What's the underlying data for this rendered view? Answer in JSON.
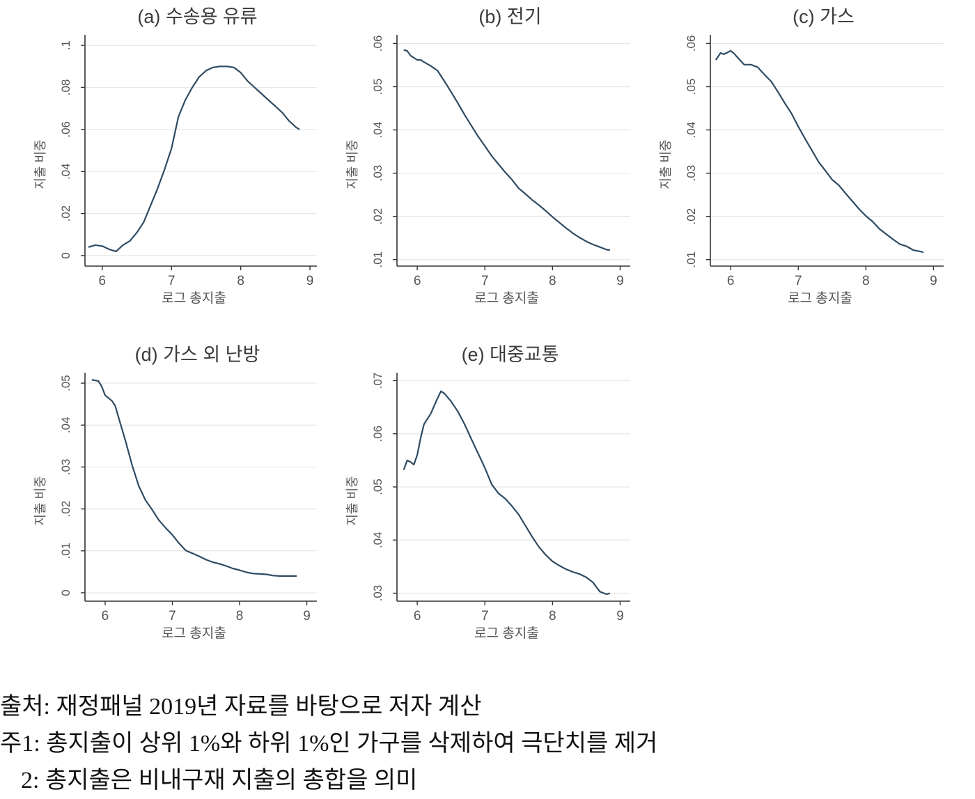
{
  "chart_data": [
    {
      "type": "line",
      "title": "(a) 수송용 유류",
      "xlabel": "로그 총지출",
      "ylabel": "지출 비중",
      "xlim": [
        5.75,
        9.1
      ],
      "ylim": [
        -0.005,
        0.105
      ],
      "xticks": [
        6,
        7,
        8,
        9
      ],
      "xtick_labels": [
        "6",
        "7",
        "8",
        "9"
      ],
      "yticks": [
        0,
        0.02,
        0.04,
        0.06,
        0.08,
        0.1
      ],
      "ytick_labels": [
        "0",
        ".02",
        ".04",
        ".06",
        ".08",
        ".1"
      ],
      "grid": true,
      "series": [
        {
          "color": "#2f4b62",
          "x": [
            5.8,
            5.9,
            6.0,
            6.1,
            6.2,
            6.3,
            6.4,
            6.5,
            6.6,
            6.7,
            6.8,
            6.9,
            7.0,
            7.1,
            7.2,
            7.3,
            7.4,
            7.5,
            7.6,
            7.7,
            7.8,
            7.9,
            8.0,
            8.1,
            8.2,
            8.3,
            8.4,
            8.5,
            8.6,
            8.7,
            8.8,
            8.85
          ],
          "y": [
            0.004,
            0.005,
            0.0045,
            0.003,
            0.002,
            0.005,
            0.007,
            0.011,
            0.016,
            0.024,
            0.032,
            0.041,
            0.051,
            0.066,
            0.074,
            0.08,
            0.085,
            0.088,
            0.0895,
            0.09,
            0.09,
            0.0895,
            0.087,
            0.083,
            0.08,
            0.077,
            0.074,
            0.071,
            0.068,
            0.064,
            0.061,
            0.06
          ]
        }
      ]
    },
    {
      "type": "line",
      "title": "(b) 전기",
      "xlabel": "로그 총지출",
      "ylabel": "지출 비중",
      "xlim": [
        5.7,
        9.15
      ],
      "ylim": [
        0.0085,
        0.062
      ],
      "xticks": [
        6,
        7,
        8,
        9
      ],
      "xtick_labels": [
        "6",
        "7",
        "8",
        "9"
      ],
      "yticks": [
        0.01,
        0.02,
        0.03,
        0.04,
        0.05,
        0.06
      ],
      "ytick_labels": [
        ".01",
        ".02",
        ".03",
        ".04",
        ".05",
        ".06"
      ],
      "grid": true,
      "series": [
        {
          "color": "#2f4b62",
          "x": [
            5.8,
            5.85,
            5.9,
            6.0,
            6.05,
            6.1,
            6.2,
            6.3,
            6.4,
            6.5,
            6.6,
            6.7,
            6.8,
            6.9,
            7.0,
            7.1,
            7.2,
            7.3,
            7.4,
            7.5,
            7.6,
            7.7,
            7.8,
            7.9,
            8.0,
            8.1,
            8.2,
            8.3,
            8.4,
            8.5,
            8.6,
            8.7,
            8.8,
            8.85
          ],
          "y": [
            0.0585,
            0.0583,
            0.0572,
            0.0562,
            0.0562,
            0.0557,
            0.0548,
            0.0537,
            0.0513,
            0.0488,
            0.0462,
            0.0435,
            0.041,
            0.0385,
            0.0363,
            0.034,
            0.0321,
            0.0302,
            0.0285,
            0.0265,
            0.0252,
            0.0238,
            0.0226,
            0.0213,
            0.0199,
            0.0186,
            0.0173,
            0.0161,
            0.0151,
            0.0142,
            0.0135,
            0.0129,
            0.0123,
            0.0122
          ]
        }
      ]
    },
    {
      "type": "line",
      "title": "(c) 가스",
      "xlabel": "로그 총지출",
      "ylabel": "지출 비중",
      "xlim": [
        5.7,
        9.15
      ],
      "ylim": [
        0.0085,
        0.062
      ],
      "xticks": [
        6,
        7,
        8,
        9
      ],
      "xtick_labels": [
        "6",
        "7",
        "8",
        "9"
      ],
      "yticks": [
        0.01,
        0.02,
        0.03,
        0.04,
        0.05,
        0.06
      ],
      "ytick_labels": [
        ".01",
        ".02",
        ".03",
        ".04",
        ".05",
        ".06"
      ],
      "grid": true,
      "series": [
        {
          "color": "#2f4b62",
          "x": [
            5.78,
            5.85,
            5.9,
            6.0,
            6.05,
            6.1,
            6.2,
            6.3,
            6.4,
            6.5,
            6.6,
            6.7,
            6.8,
            6.9,
            7.0,
            7.1,
            7.2,
            7.3,
            7.4,
            7.5,
            7.6,
            7.7,
            7.8,
            7.9,
            8.0,
            8.1,
            8.2,
            8.3,
            8.4,
            8.5,
            8.6,
            8.7,
            8.8,
            8.85
          ],
          "y": [
            0.0562,
            0.0578,
            0.0575,
            0.0583,
            0.0577,
            0.0568,
            0.0551,
            0.0551,
            0.0545,
            0.0528,
            0.0512,
            0.0488,
            0.0462,
            0.0438,
            0.0408,
            0.038,
            0.0353,
            0.0326,
            0.0306,
            0.0285,
            0.0272,
            0.0253,
            0.0235,
            0.0217,
            0.0201,
            0.0188,
            0.0171,
            0.0159,
            0.0147,
            0.0136,
            0.0131,
            0.0122,
            0.0119,
            0.0117
          ]
        }
      ]
    },
    {
      "type": "line",
      "title": "(d) 가스 외 난방",
      "xlabel": "로그 총지출",
      "ylabel": "지출 비중",
      "xlim": [
        5.7,
        9.15
      ],
      "ylim": [
        -0.002,
        0.0525
      ],
      "xticks": [
        6,
        7,
        8,
        9
      ],
      "xtick_labels": [
        "6",
        "7",
        "8",
        "9"
      ],
      "yticks": [
        0,
        0.01,
        0.02,
        0.03,
        0.04,
        0.05
      ],
      "ytick_labels": [
        "0",
        ".01",
        ".02",
        ".03",
        ".04",
        ".05"
      ],
      "grid": true,
      "series": [
        {
          "color": "#2f4b62",
          "x": [
            5.8,
            5.9,
            5.95,
            6.0,
            6.1,
            6.15,
            6.2,
            6.3,
            6.4,
            6.5,
            6.6,
            6.7,
            6.8,
            6.9,
            7.0,
            7.1,
            7.2,
            7.3,
            7.4,
            7.5,
            7.6,
            7.7,
            7.8,
            7.9,
            8.0,
            8.1,
            8.2,
            8.3,
            8.4,
            8.5,
            8.6,
            8.7,
            8.8,
            8.85
          ],
          "y": [
            0.0508,
            0.0505,
            0.0492,
            0.0471,
            0.0458,
            0.0446,
            0.0418,
            0.0364,
            0.0305,
            0.0255,
            0.0221,
            0.0198,
            0.0173,
            0.0155,
            0.0138,
            0.0118,
            0.0101,
            0.0094,
            0.0087,
            0.0079,
            0.0073,
            0.0069,
            0.0064,
            0.0058,
            0.0054,
            0.0049,
            0.0046,
            0.0045,
            0.0044,
            0.0041,
            0.004,
            0.004,
            0.004,
            0.004
          ]
        }
      ]
    },
    {
      "type": "line",
      "title": "(e) 대중교통",
      "xlabel": "로그 총지출",
      "ylabel": "지출 비중",
      "xlim": [
        5.7,
        9.15
      ],
      "ylim": [
        0.0285,
        0.0715
      ],
      "xticks": [
        6,
        7,
        8,
        9
      ],
      "xtick_labels": [
        "6",
        "7",
        "8",
        "9"
      ],
      "yticks": [
        0.03,
        0.04,
        0.05,
        0.06,
        0.07
      ],
      "ytick_labels": [
        ".03",
        ".04",
        ".05",
        ".06",
        ".07"
      ],
      "grid": true,
      "series": [
        {
          "color": "#2f4b62",
          "x": [
            5.8,
            5.85,
            5.9,
            5.95,
            6.0,
            6.05,
            6.1,
            6.2,
            6.3,
            6.35,
            6.4,
            6.5,
            6.6,
            6.7,
            6.8,
            6.9,
            7.0,
            7.1,
            7.2,
            7.3,
            7.4,
            7.5,
            7.6,
            7.7,
            7.8,
            7.9,
            8.0,
            8.1,
            8.2,
            8.3,
            8.4,
            8.5,
            8.6,
            8.7,
            8.8,
            8.85
          ],
          "y": [
            0.0532,
            0.055,
            0.0547,
            0.0542,
            0.056,
            0.0592,
            0.0618,
            0.0638,
            0.0667,
            0.068,
            0.0676,
            0.0661,
            0.0642,
            0.0618,
            0.059,
            0.0563,
            0.0536,
            0.0505,
            0.0488,
            0.0478,
            0.0464,
            0.0448,
            0.0427,
            0.0406,
            0.0387,
            0.0372,
            0.036,
            0.0352,
            0.0345,
            0.034,
            0.0336,
            0.033,
            0.032,
            0.0303,
            0.0298,
            0.03
          ]
        }
      ]
    }
  ],
  "notes": {
    "source": "출처: 재정패널 2019년 자료를 바탕으로 저자 계산",
    "note1": "주1: 총지출이 상위 1%와 하위 1%인 가구를 삭제하여 극단치를 제거",
    "note2": "2: 총지출은 비내구재 지출의 총합을 의미"
  },
  "colors": {
    "line": "#2f4b62",
    "grid": "#e6e6e6",
    "axis": "#333333",
    "text": "#555555",
    "title": "#3a3a3a"
  }
}
